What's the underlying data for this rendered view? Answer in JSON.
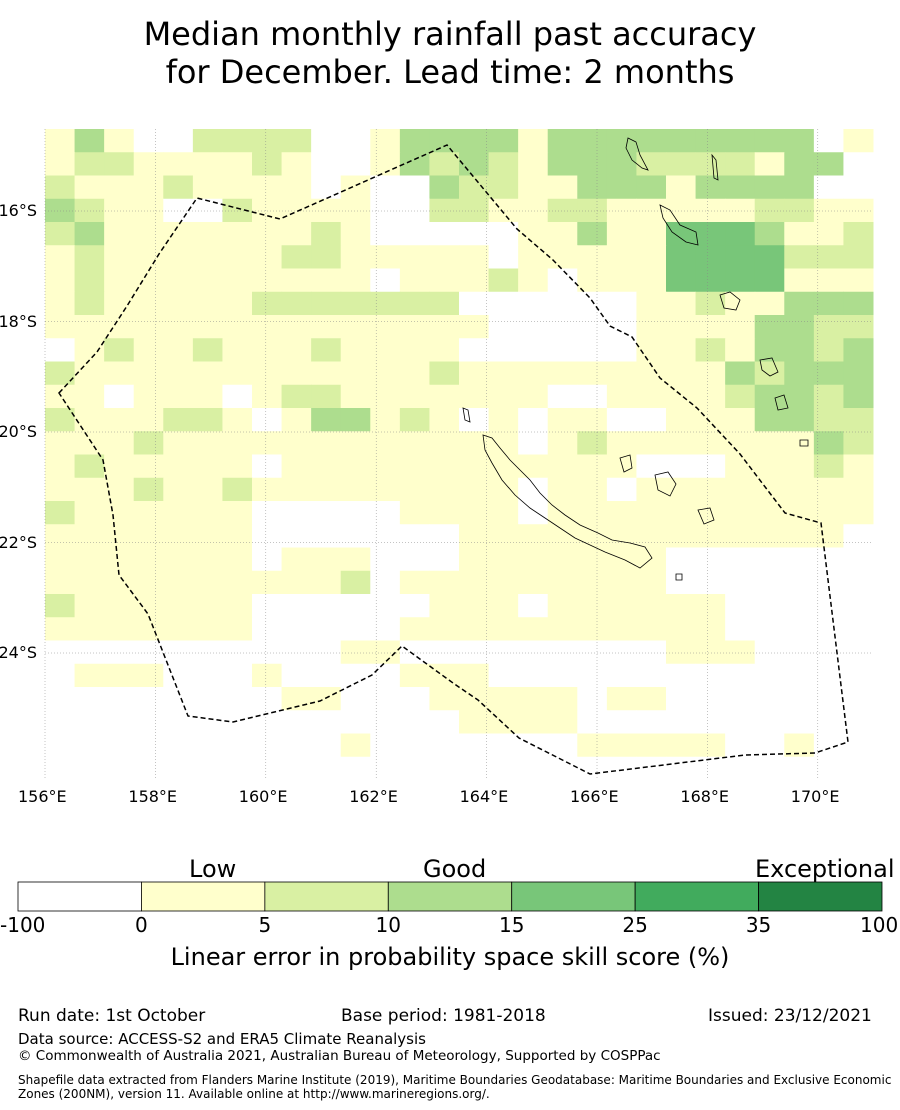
{
  "title_line1": "Median monthly rainfall past accuracy",
  "title_line2": "for December. Lead time: 2 months",
  "map": {
    "lon_range": [
      156,
      171
    ],
    "lat_range": [
      -26.5,
      -14.7
    ],
    "cell_deg": 0.833,
    "lon_ticks": [
      "156°E",
      "158°E",
      "160°E",
      "162°E",
      "164°E",
      "166°E",
      "168°E",
      "170°E"
    ],
    "lat_ticks": [
      "16°S",
      "18°S",
      "20°S",
      "22°S",
      "24°S"
    ],
    "grid_levels_rows": [
      "1310022220013333133333333301",
      "1221111210013232133322221330",
      "2111211110100322113331333300",
      "3211002111100221122111112211",
      "2311111112100000113114443112",
      "1211111122111110111114444222",
      "1211111111101112101114444111",
      "1211111222222200000011211333",
      "1111111111111110000011113322",
      "0121121112111100000011213323",
      "2111111111111211111111132333",
      "1101110122111111100111123323",
      "2111221013312101011001113322",
      "1112111111111111012111111132",
      "1211111011111111111100011121",
      "1112112111111111011011111111",
      "2111111000001111011111111111",
      "1111111000000011111111111110",
      "1111111011100011111110000000",
      "1111111111201111111110000000",
      "2111111000000111011111100000",
      "1111111000001111111111100000",
      "0000000000110000000001110000",
      "0111000100001110000000000000",
      "0000000011000111110110000000",
      "0000000000000011110000000000",
      "0000000000100000001111100100",
      "0000000000000000000000000000"
    ]
  },
  "colorbar": {
    "heading_low": "Low",
    "heading_good": "Good",
    "heading_exceptional": "Exceptional",
    "bins": [
      {
        "from": -100,
        "to": 0,
        "color": "#ffffff"
      },
      {
        "from": 0,
        "to": 5,
        "color": "#ffffcc"
      },
      {
        "from": 5,
        "to": 10,
        "color": "#d9f0a3"
      },
      {
        "from": 10,
        "to": 15,
        "color": "#addd8e"
      },
      {
        "from": 15,
        "to": 25,
        "color": "#78c679"
      },
      {
        "from": 25,
        "to": 35,
        "color": "#41ab5d"
      },
      {
        "from": 35,
        "to": 100,
        "color": "#238443"
      }
    ],
    "tick_labels": [
      "-100",
      "0",
      "5",
      "10",
      "15",
      "25",
      "35",
      "100"
    ],
    "label": "Linear error in probability space skill score (%)"
  },
  "footer": {
    "run_date": "Run date: 1st October",
    "base_period": "Base period: 1981-2018",
    "issued": "Issued: 23/12/2021",
    "data_source": "Data source: ACCESS-S2 and ERA5 Climate Reanalysis",
    "copyright": "© Commonwealth of Australia 2021, Australian Bureau of Meteorology, Supported by COSPPac",
    "shapefile": "Shapefile data extracted from Flanders Marine Institute (2019), Maritime Boundaries Geodatabase: Maritime Boundaries and Exclusive Economic Zones (200NM), version 11. Available online at http://www.marineregions.org/."
  }
}
